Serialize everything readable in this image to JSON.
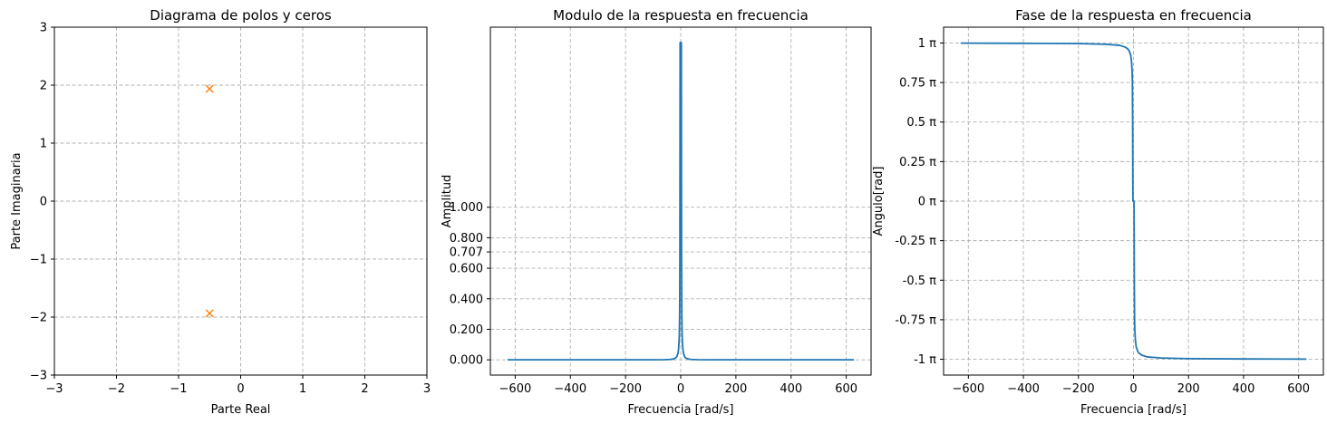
{
  "chart_data": [
    {
      "type": "scatter",
      "title": "Diagrama de polos y ceros",
      "xlabel": "Parte Real",
      "ylabel": "Parte Imaginaria",
      "xlim": [
        -3,
        3
      ],
      "ylim": [
        -3,
        3
      ],
      "xticks": [
        -3,
        -2,
        -1,
        0,
        1,
        2,
        3
      ],
      "yticks": [
        -3,
        -2,
        -1,
        0,
        1,
        2,
        3
      ],
      "xtick_labels": [
        "−3",
        "−2",
        "−1",
        "0",
        "1",
        "2",
        "3"
      ],
      "ytick_labels": [
        "−3",
        "−2",
        "−1",
        "0",
        "1",
        "2",
        "3"
      ],
      "grid": true,
      "series": [
        {
          "marker": "x",
          "color": "#ff7f0e",
          "points": [
            {
              "x": -0.5,
              "y": 1.936
            },
            {
              "x": -0.5,
              "y": -1.936
            }
          ]
        }
      ]
    },
    {
      "type": "line",
      "title": "Modulo de la respuesta en frecuencia",
      "xlabel": "Frecuencia [rad/s]",
      "ylabel": "Amplitud",
      "xlim": [
        -690,
        690
      ],
      "ylim": [
        -0.1,
        2.18
      ],
      "xticks": [
        -600,
        -400,
        -200,
        0,
        200,
        400,
        600
      ],
      "xtick_labels": [
        "−600",
        "−400",
        "−200",
        "0",
        "200",
        "400",
        "600"
      ],
      "yticks": [
        0,
        0.2,
        0.4,
        0.6,
        0.707,
        0.8,
        1.0
      ],
      "ytick_labels": [
        "0.000",
        "0.200",
        "0.400",
        "0.600",
        "0.707",
        "0.800",
        "1.000"
      ],
      "grid": true,
      "series": [
        {
          "color": "#1f77b4",
          "points": [
            [
              -628,
              0.0
            ],
            [
              -300,
              0.0
            ],
            [
              -100,
              0.0004
            ],
            [
              -60,
              0.001
            ],
            [
              -40,
              0.0025
            ],
            [
              -30,
              0.0044
            ],
            [
              -20,
              0.01
            ],
            [
              -15,
              0.018
            ],
            [
              -10,
              0.042
            ],
            [
              -8,
              0.066
            ],
            [
              -6,
              0.12
            ],
            [
              -5,
              0.17
            ],
            [
              -4,
              0.29
            ],
            [
              -3.5,
              0.42
            ],
            [
              -3,
              0.73
            ],
            [
              -2.5,
              1.5
            ],
            [
              -2.2,
              2.07
            ],
            [
              -2.0,
              2.08
            ],
            [
              2.0,
              2.08
            ],
            [
              2.2,
              2.07
            ],
            [
              2.5,
              1.5
            ],
            [
              3,
              0.73
            ],
            [
              3.5,
              0.42
            ],
            [
              4,
              0.29
            ],
            [
              5,
              0.17
            ],
            [
              6,
              0.12
            ],
            [
              8,
              0.066
            ],
            [
              10,
              0.042
            ],
            [
              15,
              0.018
            ],
            [
              20,
              0.01
            ],
            [
              30,
              0.0044
            ],
            [
              40,
              0.0025
            ],
            [
              60,
              0.001
            ],
            [
              100,
              0.0004
            ],
            [
              300,
              0.0
            ],
            [
              628,
              0.0
            ]
          ]
        }
      ]
    },
    {
      "type": "line",
      "title": "Fase de la respuesta en frecuencia",
      "xlabel": "Frecuencia [rad/s]",
      "ylabel": "Angulo[rad]",
      "xlim": [
        -690,
        690
      ],
      "ylim": [
        -1.1,
        1.1
      ],
      "xticks": [
        -600,
        -400,
        -200,
        0,
        200,
        400,
        600
      ],
      "xtick_labels": [
        "−600",
        "−400",
        "−200",
        "0",
        "200",
        "400",
        "600"
      ],
      "yticks": [
        -1,
        -0.75,
        -0.5,
        -0.25,
        0,
        0.25,
        0.5,
        0.75,
        1
      ],
      "ytick_labels": [
        "-1 π",
        "-0.75 π",
        "-0.5 π",
        "-0.25 π",
        "0 π",
        "0.25 π",
        "0.5 π",
        "0.75 π",
        "1 π"
      ],
      "grid": true,
      "series": [
        {
          "color": "#1f77b4",
          "points": [
            [
              -628,
              0.999
            ],
            [
              -400,
              0.998
            ],
            [
              -200,
              0.996
            ],
            [
              -100,
              0.992
            ],
            [
              -50,
              0.985
            ],
            [
              -30,
              0.974
            ],
            [
              -20,
              0.961
            ],
            [
              -15,
              0.948
            ],
            [
              -10,
              0.922
            ],
            [
              -7,
              0.88
            ],
            [
              -5,
              0.82
            ],
            [
              -4,
              0.75
            ],
            [
              -3,
              0.5
            ],
            [
              -2.5,
              0.2
            ],
            [
              -2.2,
              0.05
            ],
            [
              -2.0,
              0.0
            ],
            [
              2.0,
              0.0
            ],
            [
              2.2,
              -0.05
            ],
            [
              2.5,
              -0.2
            ],
            [
              3,
              -0.5
            ],
            [
              4,
              -0.75
            ],
            [
              5,
              -0.82
            ],
            [
              7,
              -0.88
            ],
            [
              10,
              -0.922
            ],
            [
              15,
              -0.948
            ],
            [
              20,
              -0.961
            ],
            [
              30,
              -0.974
            ],
            [
              50,
              -0.985
            ],
            [
              100,
              -0.992
            ],
            [
              200,
              -0.996
            ],
            [
              400,
              -0.998
            ],
            [
              628,
              -0.999
            ]
          ]
        }
      ]
    }
  ]
}
